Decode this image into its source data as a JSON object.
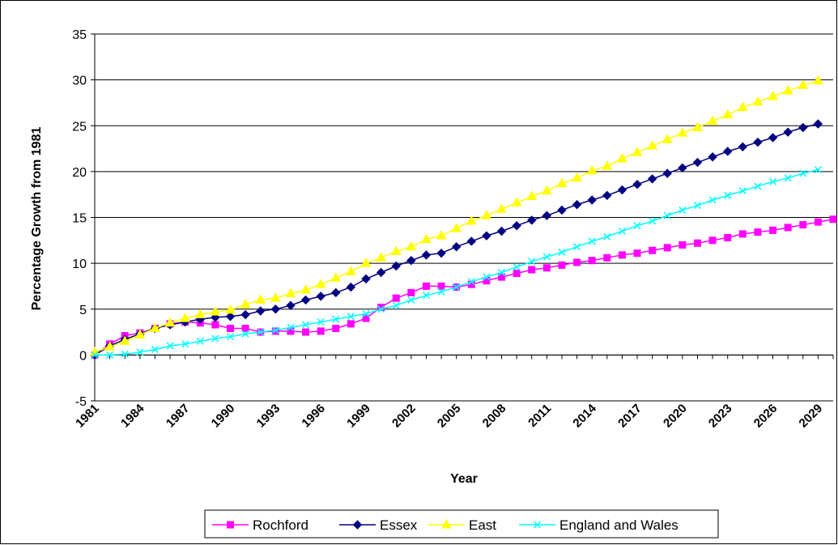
{
  "chart_data": {
    "type": "line",
    "title": "",
    "xlabel": "Year",
    "ylabel": "Percentage Growth from 1981",
    "ylim": [
      -5,
      35
    ],
    "yticks": [
      "-5",
      "0",
      "5",
      "10",
      "15",
      "20",
      "25",
      "30",
      "35"
    ],
    "xlim": [
      1981,
      2030
    ],
    "xticks": [
      "1981",
      "1984",
      "1987",
      "1990",
      "1993",
      "1996",
      "1999",
      "2002",
      "2005",
      "2008",
      "2011",
      "2014",
      "2017",
      "2020",
      "2023",
      "2026",
      "2029"
    ],
    "grid": "horizontal",
    "legend": "bottom",
    "series": [
      {
        "name": "Rochford",
        "color": "#ff00ff",
        "marker": "square",
        "x": [
          1981,
          1982,
          1983,
          1984,
          1985,
          1986,
          1987,
          1988,
          1989,
          1990,
          1991,
          1992,
          1993,
          1994,
          1995,
          1996,
          1997,
          1998,
          1999,
          2000,
          2001,
          2002,
          2003,
          2004,
          2005,
          2006,
          2007,
          2008,
          2009,
          2010,
          2011,
          2012,
          2013,
          2014,
          2015,
          2016,
          2017,
          2018,
          2019,
          2020,
          2021,
          2022,
          2023,
          2024,
          2025,
          2026,
          2027,
          2028,
          2029,
          2030
        ],
        "values": [
          0,
          1.2,
          2.1,
          2.4,
          2.9,
          3.4,
          3.6,
          3.5,
          3.3,
          2.9,
          2.9,
          2.5,
          2.6,
          2.6,
          2.5,
          2.6,
          2.9,
          3.4,
          4.0,
          5.2,
          6.2,
          6.8,
          7.5,
          7.5,
          7.4,
          7.7,
          8.1,
          8.5,
          8.9,
          9.3,
          9.5,
          9.8,
          10.1,
          10.3,
          10.6,
          10.9,
          11.1,
          11.4,
          11.7,
          12.0,
          12.2,
          12.5,
          12.8,
          13.2,
          13.4,
          13.6,
          13.9,
          14.2,
          14.5,
          14.8
        ]
      },
      {
        "name": "Essex",
        "color": "#000080",
        "marker": "diamond",
        "x": [
          1981,
          1982,
          1983,
          1984,
          1985,
          1986,
          1987,
          1988,
          1989,
          1990,
          1991,
          1992,
          1993,
          1994,
          1995,
          1996,
          1997,
          1998,
          1999,
          2000,
          2001,
          2002,
          2003,
          2004,
          2005,
          2006,
          2007,
          2008,
          2009,
          2010,
          2011,
          2012,
          2013,
          2014,
          2015,
          2016,
          2017,
          2018,
          2019,
          2020,
          2021,
          2022,
          2023,
          2024,
          2025,
          2026,
          2027,
          2028,
          2029
        ],
        "values": [
          0,
          1.0,
          1.7,
          2.3,
          2.9,
          3.3,
          3.6,
          3.9,
          4.1,
          4.2,
          4.4,
          4.8,
          5.0,
          5.4,
          6.0,
          6.4,
          6.8,
          7.4,
          8.3,
          9.0,
          9.7,
          10.3,
          10.9,
          11.1,
          11.8,
          12.4,
          13.0,
          13.5,
          14.1,
          14.7,
          15.2,
          15.8,
          16.4,
          16.9,
          17.4,
          18.0,
          18.6,
          19.2,
          19.8,
          20.4,
          21.0,
          21.6,
          22.2,
          22.7,
          23.2,
          23.7,
          24.3,
          24.8,
          25.2
        ]
      },
      {
        "name": "East",
        "color": "#ffff00",
        "marker": "triangle",
        "x": [
          1981,
          1982,
          1983,
          1984,
          1985,
          1986,
          1987,
          1988,
          1989,
          1990,
          1991,
          1992,
          1993,
          1994,
          1995,
          1996,
          1997,
          1998,
          1999,
          2000,
          2001,
          2002,
          2003,
          2004,
          2005,
          2006,
          2007,
          2008,
          2009,
          2010,
          2011,
          2012,
          2013,
          2014,
          2015,
          2016,
          2017,
          2018,
          2019,
          2020,
          2021,
          2022,
          2023,
          2024,
          2025,
          2026,
          2027,
          2028,
          2029
        ],
        "values": [
          0.3,
          0.9,
          1.5,
          2.2,
          2.9,
          3.5,
          4.0,
          4.4,
          4.7,
          4.9,
          5.5,
          6.0,
          6.2,
          6.7,
          7.1,
          7.7,
          8.4,
          9.1,
          10.0,
          10.6,
          11.3,
          11.8,
          12.6,
          13.0,
          13.8,
          14.6,
          15.2,
          15.9,
          16.6,
          17.3,
          17.9,
          18.7,
          19.3,
          20.1,
          20.6,
          21.4,
          22.1,
          22.8,
          23.5,
          24.2,
          24.8,
          25.5,
          26.2,
          27.0,
          27.6,
          28.2,
          28.8,
          29.4,
          29.9
        ]
      },
      {
        "name": "England and Wales",
        "color": "#00ffff",
        "marker": "x",
        "x": [
          1981,
          1982,
          1983,
          1984,
          1985,
          1986,
          1987,
          1988,
          1989,
          1990,
          1991,
          1992,
          1993,
          1994,
          1995,
          1996,
          1997,
          1998,
          1999,
          2000,
          2001,
          2002,
          2003,
          2004,
          2005,
          2006,
          2007,
          2008,
          2009,
          2010,
          2011,
          2012,
          2013,
          2014,
          2015,
          2016,
          2017,
          2018,
          2019,
          2020,
          2021,
          2022,
          2023,
          2024,
          2025,
          2026,
          2027,
          2028,
          2029
        ],
        "values": [
          0,
          0,
          0.1,
          0.3,
          0.6,
          1.0,
          1.2,
          1.5,
          1.8,
          2.0,
          2.3,
          2.5,
          2.7,
          3.0,
          3.3,
          3.6,
          3.9,
          4.2,
          4.5,
          5.0,
          5.4,
          6.0,
          6.5,
          6.9,
          7.4,
          8.0,
          8.5,
          9.0,
          9.6,
          10.2,
          10.7,
          11.2,
          11.8,
          12.4,
          12.9,
          13.5,
          14.1,
          14.6,
          15.2,
          15.8,
          16.3,
          16.9,
          17.4,
          17.9,
          18.4,
          18.9,
          19.3,
          19.8,
          20.2
        ]
      }
    ]
  }
}
